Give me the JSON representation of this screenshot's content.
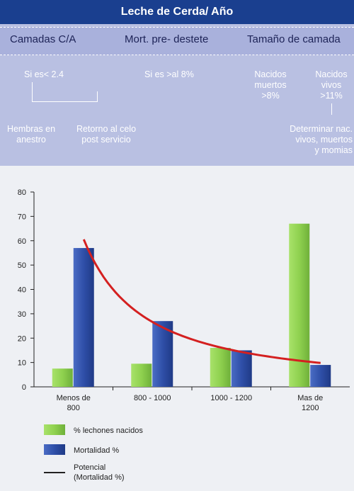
{
  "header": {
    "title": "Leche de Cerda/ Año"
  },
  "tree": {
    "headers": [
      "Camadas C/A",
      "Mort. pre- destete",
      "Tamaño de camada"
    ],
    "n_si_2_4": "Si es< 2.4",
    "n_si_8": "Si es >al 8%",
    "n_nac_muertos": [
      "Nacidos",
      "muertos",
      ">8%"
    ],
    "n_nac_vivos": [
      "Nacidos",
      "vivos",
      ">11%"
    ],
    "n_hembras": [
      "Hembras en",
      "anestro"
    ],
    "n_retorno": [
      "Retorno al celo",
      "post servicio"
    ],
    "n_determinar": [
      "Determinar nac.",
      "vivos, muertos",
      "y momias"
    ]
  },
  "chart_data": {
    "type": "bar",
    "categories": [
      [
        "Menos de",
        "800"
      ],
      [
        "800 - 1000"
      ],
      [
        "1000 - 1200"
      ],
      [
        "Mas de",
        "1200"
      ]
    ],
    "series": [
      {
        "name": "% lechones nacidos",
        "values": [
          7.5,
          9.5,
          16,
          67
        ],
        "color": "#8fd14f"
      },
      {
        "name": "Mortalidad %",
        "values": [
          57,
          27,
          15,
          9
        ],
        "color": "#2f4fa8"
      }
    ],
    "trendline": {
      "name": [
        "Potencial",
        "(Mortalidad %)"
      ],
      "type": "power",
      "color": "#d42020"
    },
    "ylim": [
      0,
      80
    ],
    "yticks": [
      0,
      10,
      20,
      30,
      40,
      50,
      60,
      70,
      80
    ],
    "legend_position": "bottom-left",
    "grid": false
  }
}
